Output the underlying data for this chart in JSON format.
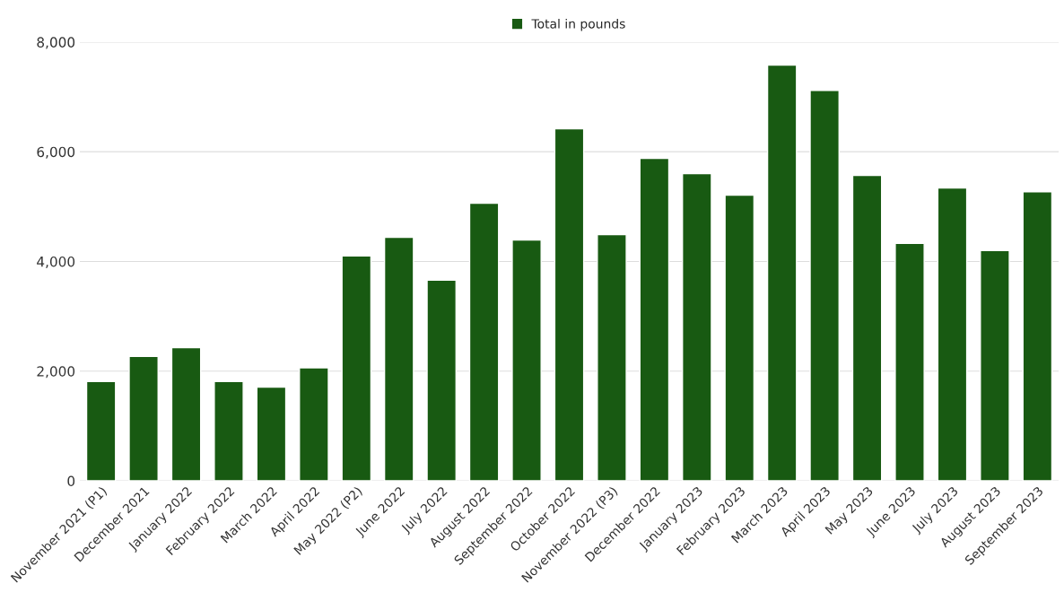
{
  "chart_data": {
    "type": "bar",
    "categories": [
      "November 2021 (P1)",
      "December 2021",
      "January 2022",
      "February 2022",
      "March 2022",
      "April 2022",
      "May 2022 (P2)",
      "June 2022",
      "July 2022",
      "August 2022",
      "September 2022",
      "October 2022",
      "November 2022 (P3)",
      "December 2022",
      "January 2023",
      "February 2023",
      "March 2023",
      "April 2023",
      "May 2023",
      "June 2023",
      "July 2023",
      "August 2023",
      "September 2023"
    ],
    "series": [
      {
        "name": "Total in pounds",
        "color": "#185a12",
        "values": [
          1810,
          2270,
          2430,
          1810,
          1710,
          2060,
          4100,
          4440,
          3660,
          5060,
          4390,
          6420,
          4490,
          5880,
          5600,
          5210,
          7580,
          7120,
          5570,
          4330,
          5340,
          4200,
          5270
        ]
      }
    ],
    "ylim": [
      0,
      8000
    ],
    "yticks": [
      {
        "value": 0,
        "label": "0"
      },
      {
        "value": 2000,
        "label": "2,000"
      },
      {
        "value": 4000,
        "label": "4,000"
      },
      {
        "value": 6000,
        "label": "6,000"
      },
      {
        "value": 8000,
        "label": "8,000"
      }
    ],
    "grid": "y",
    "legend": "top"
  }
}
